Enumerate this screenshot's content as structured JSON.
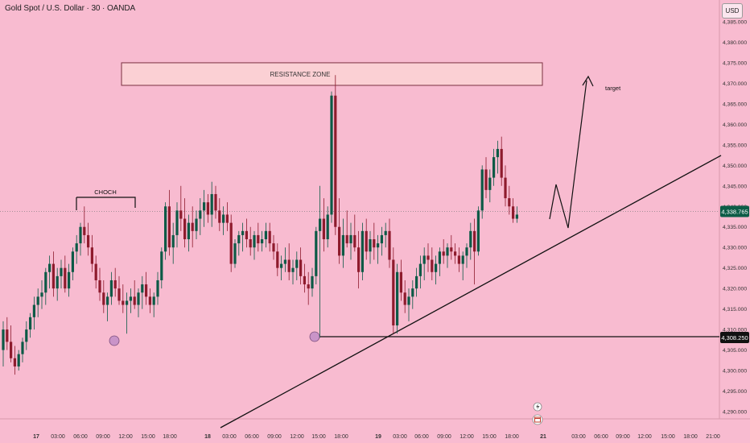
{
  "header": {
    "symbol_title": "Gold Spot / U.S. Dollar · 30 · OANDA",
    "currency": "USD"
  },
  "price_axis": {
    "ticks": [
      "4,385.000",
      "4,380.000",
      "4,375.000",
      "4,370.000",
      "4,365.000",
      "4,360.000",
      "4,355.000",
      "4,350.000",
      "4,345.000",
      "4,340.000",
      "4,335.000",
      "4,330.000",
      "4,325.000",
      "4,320.000",
      "4,315.000",
      "4,310.000",
      "4,305.000",
      "4,300.000",
      "4,295.000",
      "4,290.000"
    ],
    "current_price_label": "4,338.765",
    "level_label": "4,308.250"
  },
  "time_axis": {
    "labels": [
      "17",
      "03:00",
      "06:00",
      "09:00",
      "12:00",
      "15:00",
      "18:00",
      "18",
      "03:00",
      "06:00",
      "09:00",
      "12:00",
      "15:00",
      "18:00",
      "19",
      "03:00",
      "06:00",
      "09:00",
      "12:00",
      "15:00",
      "18:00",
      "21",
      "03:00",
      "06:00",
      "09:00",
      "12:00",
      "15:00",
      "18:00",
      "21:00"
    ]
  },
  "annotations": {
    "resistance_label": "RESISTANCE ZONE",
    "choch_label": "CHOCH",
    "target_label": "target"
  },
  "colors": {
    "background": "#f8bbd0",
    "bull": "#0c5a46",
    "bear": "#8e1b2d",
    "zone_fill": "#fbd0d4",
    "marker": "#c994c8",
    "price_tag": "#0d5c47",
    "line": "#111111"
  },
  "icons": {
    "flash": "lightning-icon",
    "calendar": "calendar-event-icon"
  },
  "chart_data": {
    "type": "candlestick",
    "title": "Gold Spot / U.S. Dollar · 30 · OANDA",
    "y_unit": "USD",
    "ylim": [
      4286,
      4389
    ],
    "candles": [
      [
        4305,
        4312,
        4301,
        4310
      ],
      [
        4310,
        4313,
        4305,
        4307
      ],
      [
        4307,
        4311,
        4302,
        4303
      ],
      [
        4303,
        4306,
        4299,
        4301
      ],
      [
        4301,
        4305,
        4300,
        4304
      ],
      [
        4304,
        4308,
        4302,
        4307
      ],
      [
        4307,
        4312,
        4305,
        4310
      ],
      [
        4310,
        4314,
        4308,
        4313
      ],
      [
        4313,
        4318,
        4310,
        4316
      ],
      [
        4316,
        4320,
        4313,
        4318
      ],
      [
        4318,
        4322,
        4315,
        4319
      ],
      [
        4319,
        4325,
        4316,
        4324
      ],
      [
        4324,
        4328,
        4320,
        4326
      ],
      [
        4326,
        4329,
        4318,
        4320
      ],
      [
        4320,
        4325,
        4317,
        4323
      ],
      [
        4323,
        4327,
        4320,
        4325
      ],
      [
        4325,
        4328,
        4319,
        4320
      ],
      [
        4320,
        4326,
        4318,
        4324
      ],
      [
        4324,
        4330,
        4322,
        4329
      ],
      [
        4329,
        4333,
        4326,
        4331
      ],
      [
        4331,
        4336,
        4328,
        4335
      ],
      [
        4335,
        4340,
        4331,
        4333
      ],
      [
        4333,
        4336,
        4328,
        4330
      ],
      [
        4330,
        4333,
        4324,
        4326
      ],
      [
        4326,
        4328,
        4320,
        4322
      ],
      [
        4322,
        4325,
        4317,
        4319
      ],
      [
        4319,
        4322,
        4314,
        4316
      ],
      [
        4316,
        4319,
        4312,
        4318
      ],
      [
        4318,
        4324,
        4316,
        4322
      ],
      [
        4322,
        4325,
        4318,
        4320
      ],
      [
        4320,
        4323,
        4316,
        4317
      ],
      [
        4317,
        4321,
        4314,
        4316
      ],
      [
        4316,
        4319,
        4309,
        4317
      ],
      [
        4317,
        4320,
        4314,
        4318
      ],
      [
        4318,
        4322,
        4315,
        4316
      ],
      [
        4316,
        4320,
        4313,
        4319
      ],
      [
        4319,
        4323,
        4315,
        4321
      ],
      [
        4321,
        4324,
        4316,
        4318
      ],
      [
        4318,
        4320,
        4314,
        4316
      ],
      [
        4316,
        4319,
        4313,
        4318
      ],
      [
        4318,
        4324,
        4316,
        4322
      ],
      [
        4322,
        4330,
        4320,
        4329
      ],
      [
        4329,
        4341,
        4327,
        4340
      ],
      [
        4340,
        4344,
        4328,
        4330
      ],
      [
        4330,
        4336,
        4326,
        4333
      ],
      [
        4333,
        4341,
        4330,
        4339
      ],
      [
        4339,
        4345,
        4334,
        4337
      ],
      [
        4337,
        4342,
        4330,
        4332
      ],
      [
        4332,
        4338,
        4329,
        4336
      ],
      [
        4336,
        4340,
        4330,
        4334
      ],
      [
        4334,
        4339,
        4332,
        4337
      ],
      [
        4337,
        4342,
        4333,
        4339
      ],
      [
        4339,
        4344,
        4335,
        4341
      ],
      [
        4341,
        4343,
        4336,
        4338
      ],
      [
        4338,
        4346,
        4335,
        4343
      ],
      [
        4343,
        4345,
        4337,
        4339
      ],
      [
        4339,
        4342,
        4334,
        4336
      ],
      [
        4336,
        4340,
        4333,
        4338
      ],
      [
        4338,
        4341,
        4334,
        4336
      ],
      [
        4336,
        4338,
        4324,
        4326
      ],
      [
        4326,
        4332,
        4325,
        4331
      ],
      [
        4331,
        4334,
        4328,
        4333
      ],
      [
        4333,
        4336,
        4329,
        4334
      ],
      [
        4334,
        4337,
        4330,
        4332
      ],
      [
        4332,
        4335,
        4328,
        4330
      ],
      [
        4330,
        4334,
        4327,
        4333
      ],
      [
        4333,
        4336,
        4329,
        4331
      ],
      [
        4331,
        4334,
        4329,
        4332
      ],
      [
        4332,
        4336,
        4330,
        4334
      ],
      [
        4334,
        4336,
        4329,
        4331
      ],
      [
        4331,
        4333,
        4327,
        4329
      ],
      [
        4329,
        4331,
        4323,
        4325
      ],
      [
        4325,
        4328,
        4322,
        4326
      ],
      [
        4326,
        4330,
        4324,
        4327
      ],
      [
        4327,
        4331,
        4322,
        4324
      ],
      [
        4324,
        4327,
        4321,
        4325
      ],
      [
        4325,
        4329,
        4322,
        4327
      ],
      [
        4327,
        4330,
        4321,
        4323
      ],
      [
        4323,
        4326,
        4319,
        4321
      ],
      [
        4321,
        4324,
        4316,
        4320
      ],
      [
        4320,
        4325,
        4318,
        4323
      ],
      [
        4323,
        4335,
        4321,
        4334
      ],
      [
        4334,
        4345,
        4308,
        4337
      ],
      [
        4337,
        4342,
        4329,
        4332
      ],
      [
        4332,
        4340,
        4330,
        4338
      ],
      [
        4338,
        4368,
        4336,
        4367
      ],
      [
        4367,
        4372,
        4333,
        4335
      ],
      [
        4335,
        4342,
        4326,
        4328
      ],
      [
        4328,
        4337,
        4325,
        4333
      ],
      [
        4333,
        4339,
        4330,
        4331
      ],
      [
        4331,
        4336,
        4327,
        4333
      ],
      [
        4333,
        4338,
        4329,
        4330
      ],
      [
        4330,
        4334,
        4320,
        4324
      ],
      [
        4324,
        4336,
        4322,
        4334
      ],
      [
        4334,
        4337,
        4327,
        4329
      ],
      [
        4329,
        4334,
        4326,
        4332
      ],
      [
        4332,
        4336,
        4327,
        4330
      ],
      [
        4330,
        4333,
        4326,
        4331
      ],
      [
        4331,
        4335,
        4328,
        4333
      ],
      [
        4333,
        4336,
        4330,
        4334
      ],
      [
        4334,
        4337,
        4325,
        4327
      ],
      [
        4327,
        4330,
        4309,
        4311
      ],
      [
        4311,
        4326,
        4309,
        4324
      ],
      [
        4324,
        4327,
        4317,
        4319
      ],
      [
        4319,
        4322,
        4314,
        4316
      ],
      [
        4316,
        4320,
        4312,
        4318
      ],
      [
        4318,
        4322,
        4315,
        4320
      ],
      [
        4320,
        4325,
        4318,
        4323
      ],
      [
        4323,
        4328,
        4320,
        4326
      ],
      [
        4326,
        4330,
        4322,
        4328
      ],
      [
        4328,
        4331,
        4324,
        4327
      ],
      [
        4327,
        4330,
        4322,
        4324
      ],
      [
        4324,
        4328,
        4321,
        4326
      ],
      [
        4326,
        4330,
        4323,
        4329
      ],
      [
        4329,
        4332,
        4326,
        4328
      ],
      [
        4328,
        4331,
        4325,
        4330
      ],
      [
        4330,
        4333,
        4327,
        4329
      ],
      [
        4329,
        4331,
        4326,
        4328
      ],
      [
        4328,
        4330,
        4324,
        4326
      ],
      [
        4326,
        4329,
        4322,
        4328
      ],
      [
        4328,
        4331,
        4325,
        4330
      ],
      [
        4330,
        4336,
        4327,
        4334
      ],
      [
        4334,
        4337,
        4321,
        4329
      ],
      [
        4329,
        4340,
        4328,
        4339
      ],
      [
        4339,
        4350,
        4337,
        4349
      ],
      [
        4349,
        4352,
        4342,
        4344
      ],
      [
        4344,
        4349,
        4341,
        4347
      ],
      [
        4347,
        4354,
        4345,
        4352
      ],
      [
        4352,
        4356,
        4348,
        4354
      ],
      [
        4354,
        4357,
        4345,
        4347
      ],
      [
        4347,
        4350,
        4340,
        4342
      ],
      [
        4342,
        4345,
        4338,
        4340
      ],
      [
        4340,
        4342,
        4336,
        4337
      ],
      [
        4337,
        4340,
        4336,
        4338
      ]
    ],
    "current_price": 4338.765,
    "horizontal_level": 4308.25,
    "resistance_zone": [
      4369.5,
      4375
    ],
    "time_labels": [
      "17",
      "03:00",
      "06:00",
      "09:00",
      "12:00",
      "15:00",
      "18:00",
      "18",
      "03:00",
      "06:00",
      "09:00",
      "12:00",
      "15:00",
      "18:00",
      "19",
      "03:00",
      "06:00",
      "09:00",
      "12:00",
      "15:00",
      "18:00",
      "21",
      "03:00",
      "06:00",
      "09:00",
      "12:00",
      "15:00",
      "18:00",
      "21:00"
    ],
    "annotations": [
      "RESISTANCE ZONE",
      "CHOCH",
      "target"
    ],
    "grid": false,
    "legend": "none"
  }
}
